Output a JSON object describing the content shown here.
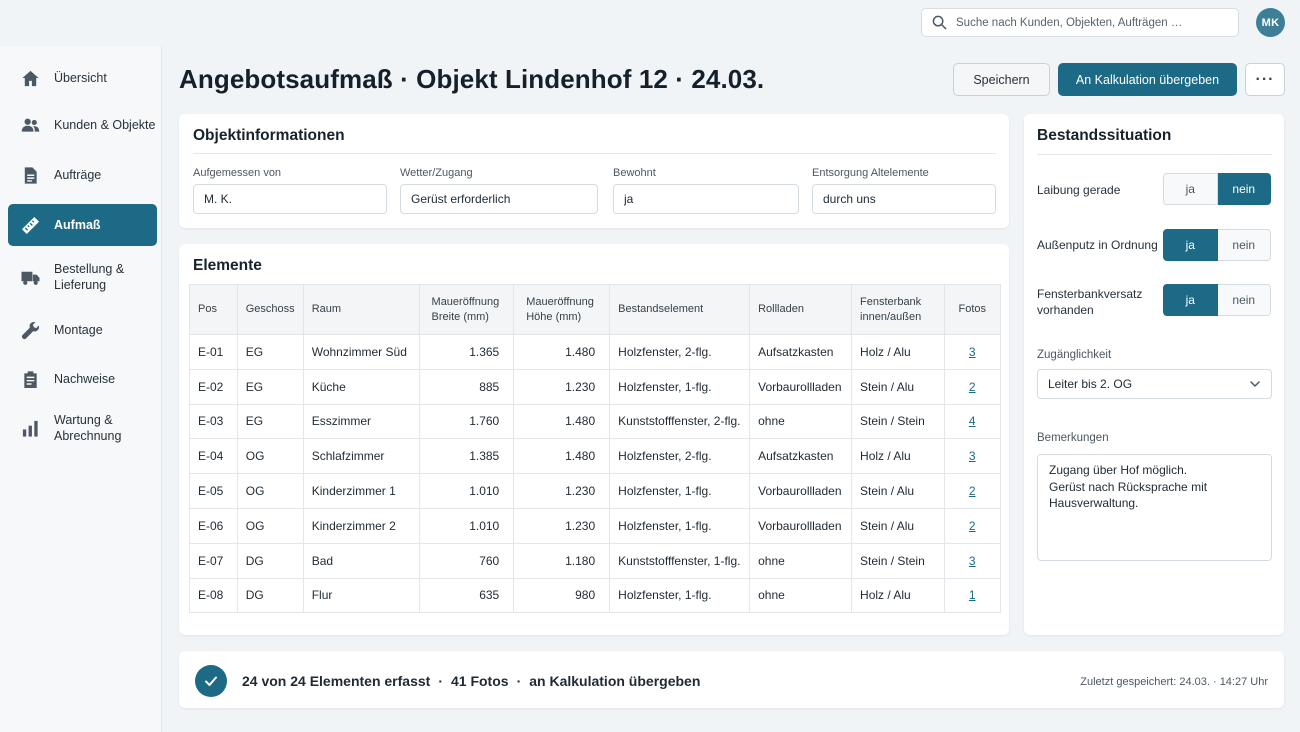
{
  "search": {
    "placeholder": "Suche nach Kunden, Objekten, Aufträgen …"
  },
  "user": {
    "initials": "MK"
  },
  "sidebar": {
    "items": [
      {
        "label": "Übersicht",
        "icon": "home-icon"
      },
      {
        "label": "Kunden & Objekte",
        "icon": "users-icon"
      },
      {
        "label": "Aufträge",
        "icon": "document-icon"
      },
      {
        "label": "Aufmaß",
        "icon": "ruler-icon",
        "active": true
      },
      {
        "label": "Bestellung &\nLieferung",
        "icon": "truck-icon"
      },
      {
        "label": "Montage",
        "icon": "wrench-icon"
      },
      {
        "label": "Nachweise",
        "icon": "clipboard-icon"
      },
      {
        "label": "Wartung &\nAbrechnung",
        "icon": "bar-chart-icon"
      }
    ]
  },
  "header": {
    "title": "Angebotsaufmaß · Objekt Lindenhof 12 · 24.03.",
    "save_label": "Speichern",
    "primary_label": "An Kalkulation übergeben",
    "more_label": "···"
  },
  "object_info": {
    "title": "Objektinformationen",
    "fields": [
      {
        "label": "Aufgemessen von",
        "value": "M. K."
      },
      {
        "label": "Wetter/Zugang",
        "value": "Gerüst erforderlich"
      },
      {
        "label": "Bewohnt",
        "value": "ja"
      },
      {
        "label": "Entsorgung Altelemente",
        "value": "durch uns"
      }
    ]
  },
  "elements": {
    "title": "Elemente",
    "columns": [
      "Pos",
      "Geschoss",
      "Raum",
      "Maueröffnung\nBreite (mm)",
      "Maueröffnung\nHöhe (mm)",
      "Bestandselement",
      "Rollladen",
      "Fensterbank\ninnen/außen",
      "Fotos"
    ],
    "rows": [
      [
        "E-01",
        "EG",
        "Wohnzimmer Süd",
        "1.365",
        "1.480",
        "Holzfenster, 2-flg.",
        "Aufsatzkasten",
        "Holz / Alu",
        "3"
      ],
      [
        "E-02",
        "EG",
        "Küche",
        "885",
        "1.230",
        "Holzfenster, 1-flg.",
        "Vorbaurollladen",
        "Stein / Alu",
        "2"
      ],
      [
        "E-03",
        "EG",
        "Esszimmer",
        "1.760",
        "1.480",
        "Kunststofffenster, 2-flg.",
        "ohne",
        "Stein / Stein",
        "4"
      ],
      [
        "E-04",
        "OG",
        "Schlafzimmer",
        "1.385",
        "1.480",
        "Holzfenster, 2-flg.",
        "Aufsatzkasten",
        "Holz / Alu",
        "3"
      ],
      [
        "E-05",
        "OG",
        "Kinderzimmer  1",
        "1.010",
        "1.230",
        "Holzfenster, 1-flg.",
        "Vorbaurollladen",
        "Stein / Alu",
        "2"
      ],
      [
        "E-06",
        "OG",
        "Kinderzimmer  2",
        "1.010",
        "1.230",
        "Holzfenster, 1-flg.",
        "Vorbaurollladen",
        "Stein / Alu",
        "2"
      ],
      [
        "E-07",
        "DG",
        "Bad",
        "760",
        "1.180",
        "Kunststofffenster, 1-flg.",
        "ohne",
        "Stein / Stein",
        "3"
      ],
      [
        "E-08",
        "DG",
        "Flur",
        "635",
        "980",
        "Holzfenster, 1-flg.",
        "ohne",
        "Holz / Alu",
        "1"
      ]
    ]
  },
  "bestand": {
    "title": "Bestandssituation",
    "toggles": [
      {
        "label": "Laibung gerade",
        "yes": "ja",
        "no": "nein",
        "selected": "nein"
      },
      {
        "label": "Außenputz in Ordnung",
        "yes": "ja",
        "no": "nein",
        "selected": "ja"
      },
      {
        "label": "Fensterbankversatz\nvorhanden",
        "yes": "ja",
        "no": "nein",
        "selected": "ja"
      }
    ],
    "access_label": "Zugänglichkeit",
    "access_value": "Leiter bis 2. OG",
    "remarks_label": "Bemerkungen",
    "remarks_value": "Zugang über Hof möglich.\nGerüst nach Rücksprache mit\nHausverwaltung."
  },
  "status": {
    "captured": "24 von 24 Elementen erfasst",
    "photos": "41 Fotos",
    "handover": "an Kalkulation übergeben",
    "separator": "·",
    "last_saved": "Zuletzt gespeichert: 24.03. · 14:27 Uhr"
  },
  "colors": {
    "accent": "#1c6a86",
    "background": "#f1f4f7"
  }
}
